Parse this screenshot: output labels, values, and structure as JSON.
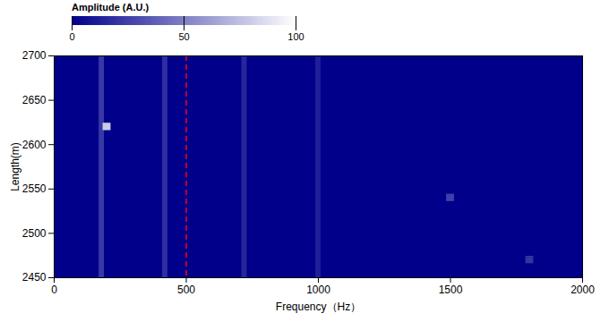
{
  "chart_data": {
    "type": "waterfall",
    "x_label": "Frequency（Hz）",
    "y_label": "Length(m)",
    "z_label": "Amplitude (A.U.)",
    "xlim": [
      0,
      2000
    ],
    "xticks": [
      0,
      500,
      1000,
      1500,
      2000
    ],
    "ylim": [
      2450,
      2700
    ],
    "yticks": [
      2450,
      2500,
      2550,
      2600,
      2650,
      2700
    ],
    "zlim": [
      0,
      100
    ],
    "zticks": [
      0,
      50,
      100
    ],
    "grid": false,
    "ridges": {
      "frequency": [
        180,
        420,
        720,
        1000
      ],
      "amplitude": [
        22,
        18,
        15,
        12
      ]
    },
    "peaks": {
      "length": [
        2620,
        2540,
        2470
      ],
      "frequency": [
        200,
        1500,
        1800
      ],
      "amplitude": [
        80,
        25,
        20
      ]
    },
    "reference_line": {
      "frequency": 500,
      "color": "#ff0000",
      "line_style": "dashed"
    }
  }
}
